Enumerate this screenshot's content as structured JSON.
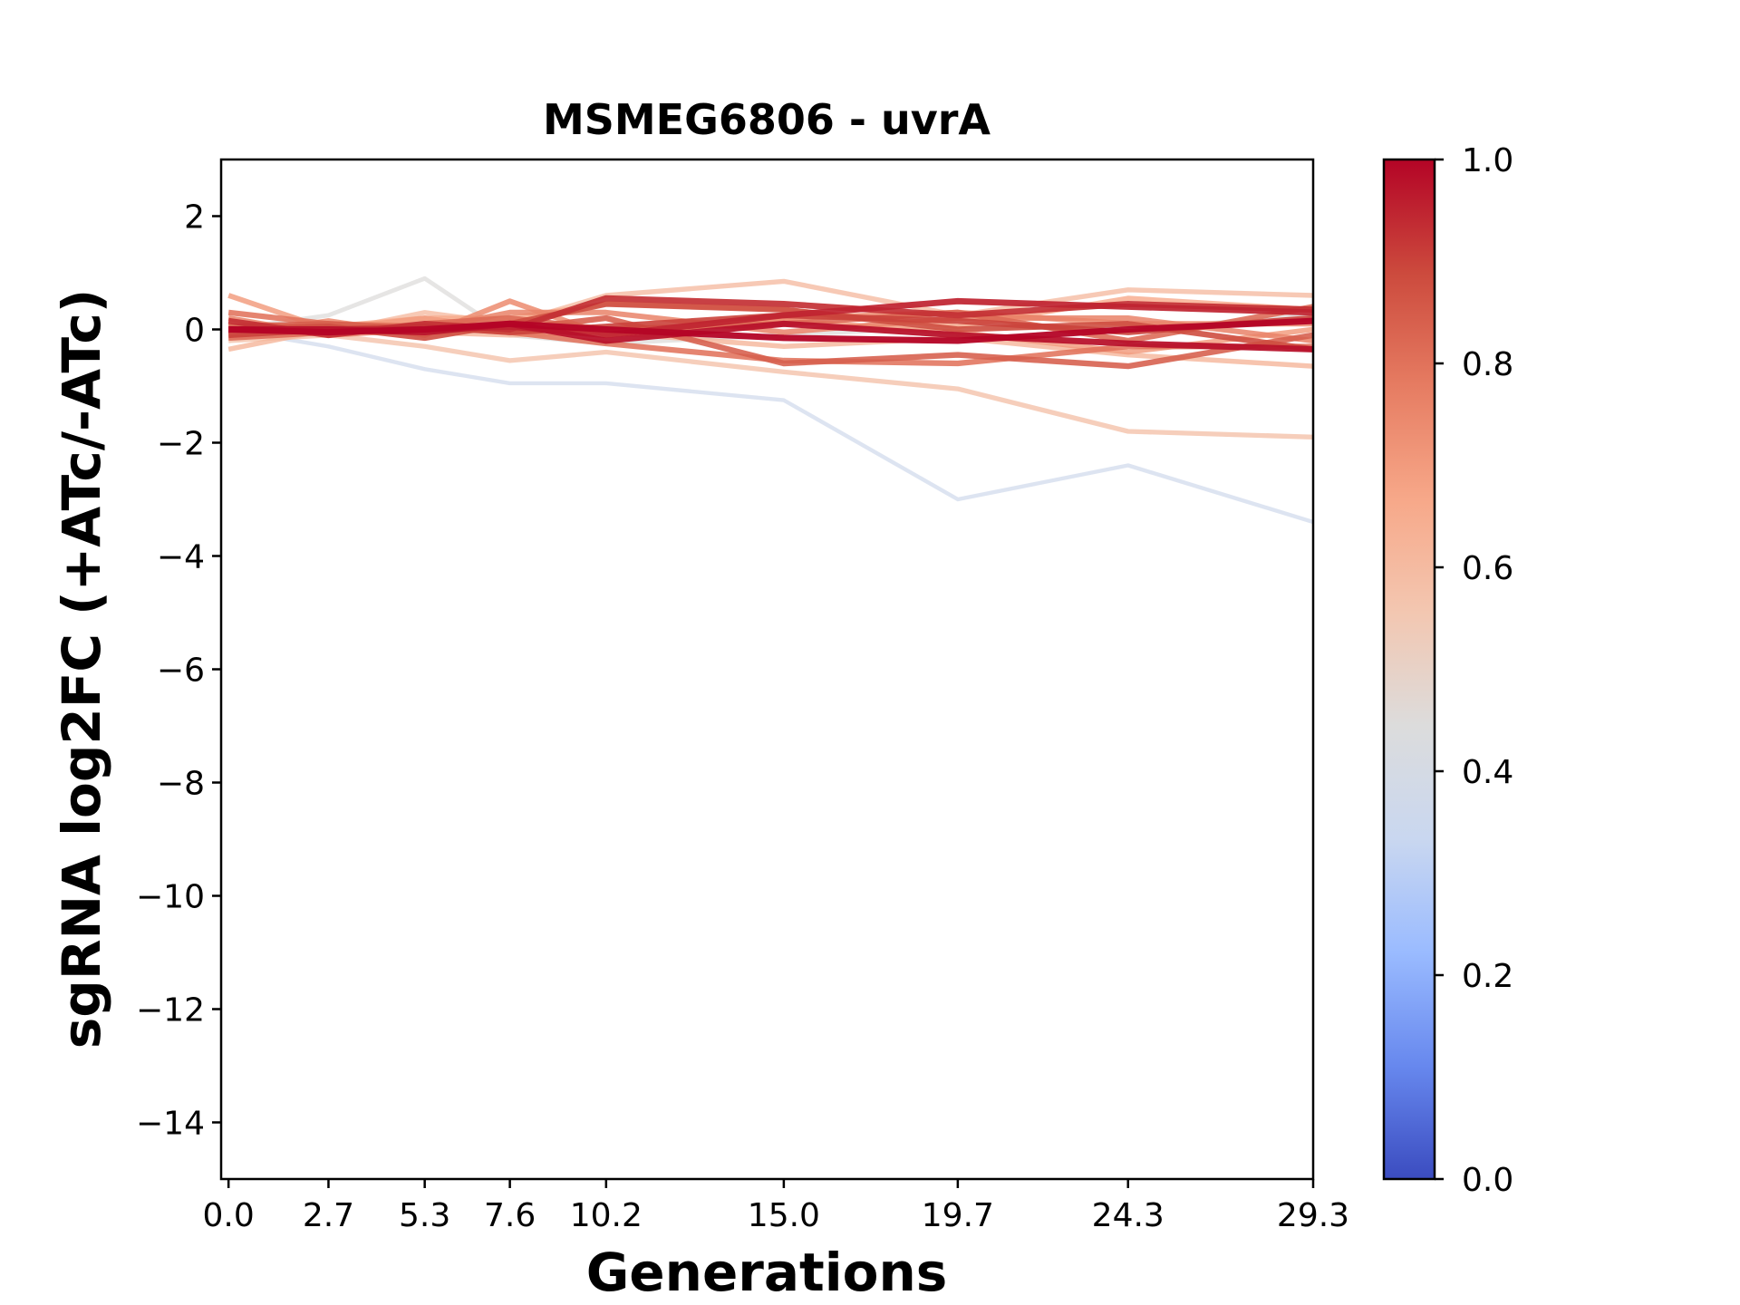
{
  "chart_data": {
    "type": "line",
    "title": "MSMEG6806 - uvrA",
    "xlabel": "Generations",
    "ylabel": "sgRNA log2FC (+ATc/-ATc)",
    "x": [
      0.0,
      2.7,
      5.3,
      7.6,
      10.2,
      15.0,
      19.7,
      24.3,
      29.3
    ],
    "x_tick_labels": [
      "0.0",
      "2.7",
      "5.3",
      "7.6",
      "10.2",
      "15.0",
      "19.7",
      "24.3",
      "29.3"
    ],
    "xlim": [
      -0.2,
      29.3
    ],
    "ylim": [
      -15,
      3
    ],
    "y_ticks": [
      2,
      0,
      -2,
      -4,
      -6,
      -8,
      -10,
      -12,
      -14
    ],
    "y_tick_labels": [
      "2",
      "0",
      "−2",
      "−4",
      "−6",
      "−8",
      "−10",
      "−12",
      "−14"
    ],
    "colorbar": {
      "colormap": "coolwarm",
      "range": [
        0.0,
        1.0
      ],
      "ticks": [
        0.0,
        0.2,
        0.4,
        0.6,
        0.8,
        1.0
      ],
      "tick_labels": [
        "0.0",
        "0.2",
        "0.4",
        "0.6",
        "0.8",
        "1.0"
      ],
      "stops": [
        "#3b4cc0",
        "#6788ee",
        "#9abbff",
        "#c9d7f0",
        "#dcdcdc",
        "#f3c7b1",
        "#f7a889",
        "#e67c62",
        "#cc4a3d",
        "#b40426"
      ]
    },
    "series": [
      {
        "score": 0.36,
        "values": [
          0.0,
          -0.3,
          -0.7,
          -0.95,
          -0.95,
          -1.25,
          -3.0,
          -2.4,
          -3.4
        ]
      },
      {
        "score": 0.45,
        "values": [
          0.0,
          0.25,
          0.9,
          -0.1,
          -0.25,
          -0.1,
          0.05,
          0.0,
          0.25
        ]
      },
      {
        "score": 0.58,
        "values": [
          -0.2,
          -0.1,
          -0.3,
          -0.55,
          -0.4,
          -0.75,
          -1.05,
          -1.8,
          -1.9
        ]
      },
      {
        "score": 0.6,
        "values": [
          0.0,
          -0.05,
          0.3,
          0.1,
          0.6,
          0.85,
          0.25,
          0.7,
          0.6
        ]
      },
      {
        "score": 0.62,
        "values": [
          -0.35,
          0.0,
          -0.05,
          -0.1,
          -0.05,
          -0.3,
          -0.15,
          -0.45,
          -0.65
        ]
      },
      {
        "score": 0.66,
        "values": [
          0.1,
          0.05,
          0.2,
          0.2,
          0.45,
          0.35,
          0.05,
          0.55,
          0.35
        ]
      },
      {
        "score": 0.7,
        "values": [
          0.6,
          0.0,
          0.2,
          0.0,
          -0.05,
          0.15,
          -0.05,
          -0.4,
          0.0
        ]
      },
      {
        "score": 0.74,
        "values": [
          -0.1,
          0.15,
          -0.1,
          0.5,
          -0.1,
          0.2,
          0.3,
          0.1,
          0.1
        ]
      },
      {
        "score": 0.76,
        "values": [
          0.2,
          -0.1,
          0.0,
          0.3,
          0.3,
          -0.05,
          0.2,
          0.2,
          -0.2
        ]
      },
      {
        "score": 0.8,
        "values": [
          0.3,
          0.1,
          0.05,
          -0.05,
          -0.25,
          -0.55,
          -0.6,
          -0.3,
          -0.3
        ]
      },
      {
        "score": 0.82,
        "values": [
          -0.15,
          -0.05,
          0.1,
          0.2,
          0.0,
          0.1,
          0.3,
          -0.2,
          0.4
        ]
      },
      {
        "score": 0.84,
        "values": [
          0.05,
          0.1,
          0.0,
          0.0,
          0.2,
          -0.6,
          -0.45,
          -0.65,
          -0.1
        ]
      },
      {
        "score": 0.88,
        "values": [
          0.0,
          0.05,
          -0.15,
          0.1,
          0.45,
          0.35,
          0.0,
          0.1,
          -0.35
        ]
      },
      {
        "score": 0.9,
        "values": [
          -0.1,
          0.0,
          0.05,
          -0.05,
          0.05,
          0.25,
          0.15,
          -0.05,
          0.2
        ]
      },
      {
        "score": 0.93,
        "values": [
          0.15,
          -0.1,
          0.1,
          0.0,
          0.55,
          0.45,
          0.25,
          0.45,
          0.35
        ]
      },
      {
        "score": 0.95,
        "values": [
          0.0,
          0.0,
          0.0,
          0.05,
          -0.1,
          0.25,
          0.5,
          0.4,
          0.3
        ]
      },
      {
        "score": 0.98,
        "values": [
          0.0,
          0.0,
          -0.05,
          0.1,
          -0.2,
          0.1,
          -0.1,
          -0.25,
          -0.35
        ]
      },
      {
        "score": 1.0,
        "values": [
          0.0,
          -0.05,
          0.0,
          0.1,
          0.0,
          -0.15,
          -0.2,
          0.0,
          0.15
        ]
      }
    ]
  }
}
